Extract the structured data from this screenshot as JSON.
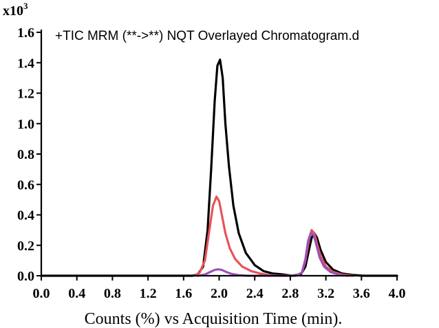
{
  "chart_data": {
    "type": "line",
    "title": "+TIC MRM (**->**) NQT Overlayed Chromatogram.d",
    "xlabel": "Counts (%) vs Acquisition Time (min).",
    "ylabel": "",
    "y_multiplier": {
      "base": "x10",
      "exponent": "3"
    },
    "xlim": [
      0.0,
      4.0
    ],
    "ylim": [
      0.0,
      1.6
    ],
    "grid": false,
    "x_ticks": [
      {
        "value": 0.0,
        "label": "0.0"
      },
      {
        "value": 0.4,
        "label": "0.4"
      },
      {
        "value": 0.8,
        "label": "0.8"
      },
      {
        "value": 1.2,
        "label": "1.2"
      },
      {
        "value": 1.6,
        "label": "1.6"
      },
      {
        "value": 2.0,
        "label": "2.0"
      },
      {
        "value": 2.4,
        "label": "2.4"
      },
      {
        "value": 2.8,
        "label": "2.8"
      },
      {
        "value": 3.2,
        "label": "3.2"
      },
      {
        "value": 3.6,
        "label": "3.6"
      },
      {
        "value": 4.0,
        "label": "4.0"
      }
    ],
    "y_ticks": [
      {
        "value": 0.0,
        "label": "0.0"
      },
      {
        "value": 0.2,
        "label": "0.2"
      },
      {
        "value": 0.4,
        "label": "0.4"
      },
      {
        "value": 0.6,
        "label": "0.6"
      },
      {
        "value": 0.8,
        "label": "0.8"
      },
      {
        "value": 1.0,
        "label": "1.0"
      },
      {
        "value": 1.2,
        "label": "1.2"
      },
      {
        "value": 1.4,
        "label": "1.4"
      },
      {
        "value": 1.6,
        "label": "1.6"
      }
    ],
    "series": [
      {
        "color": "#000000",
        "points": [
          [
            0.0,
            0.0
          ],
          [
            1.7,
            0.0
          ],
          [
            1.76,
            0.01
          ],
          [
            1.82,
            0.06
          ],
          [
            1.87,
            0.3
          ],
          [
            1.91,
            0.7
          ],
          [
            1.95,
            1.15
          ],
          [
            1.98,
            1.38
          ],
          [
            2.01,
            1.42
          ],
          [
            2.04,
            1.3
          ],
          [
            2.07,
            1.0
          ],
          [
            2.11,
            0.72
          ],
          [
            2.16,
            0.46
          ],
          [
            2.22,
            0.28
          ],
          [
            2.3,
            0.15
          ],
          [
            2.4,
            0.07
          ],
          [
            2.5,
            0.03
          ],
          [
            2.6,
            0.015
          ],
          [
            2.7,
            0.01
          ],
          [
            2.82,
            0.0
          ],
          [
            2.92,
            0.01
          ],
          [
            2.97,
            0.06
          ],
          [
            3.01,
            0.17
          ],
          [
            3.04,
            0.25
          ],
          [
            3.07,
            0.28
          ],
          [
            3.1,
            0.25
          ],
          [
            3.14,
            0.17
          ],
          [
            3.2,
            0.09
          ],
          [
            3.28,
            0.04
          ],
          [
            3.38,
            0.015
          ],
          [
            3.5,
            0.005
          ],
          [
            3.62,
            0.0
          ],
          [
            4.0,
            0.0
          ]
        ]
      },
      {
        "color": "#e8525a",
        "points": [
          [
            1.72,
            0.0
          ],
          [
            1.78,
            0.02
          ],
          [
            1.84,
            0.1
          ],
          [
            1.89,
            0.3
          ],
          [
            1.93,
            0.46
          ],
          [
            1.97,
            0.52
          ],
          [
            2.0,
            0.49
          ],
          [
            2.03,
            0.4
          ],
          [
            2.07,
            0.28
          ],
          [
            2.12,
            0.18
          ],
          [
            2.18,
            0.11
          ],
          [
            2.26,
            0.06
          ],
          [
            2.36,
            0.03
          ],
          [
            2.46,
            0.015
          ],
          [
            2.56,
            0.005
          ],
          [
            2.66,
            0.0
          ],
          [
            2.86,
            0.0
          ],
          [
            2.93,
            0.02
          ],
          [
            2.97,
            0.1
          ],
          [
            3.01,
            0.24
          ],
          [
            3.04,
            0.3
          ],
          [
            3.07,
            0.28
          ],
          [
            3.1,
            0.21
          ],
          [
            3.14,
            0.13
          ],
          [
            3.2,
            0.06
          ],
          [
            3.28,
            0.025
          ],
          [
            3.38,
            0.008
          ],
          [
            3.5,
            0.0
          ]
        ]
      },
      {
        "color": "#9a52b8",
        "points": [
          [
            1.76,
            0.0
          ],
          [
            1.84,
            0.008
          ],
          [
            1.9,
            0.025
          ],
          [
            1.95,
            0.038
          ],
          [
            1.99,
            0.042
          ],
          [
            2.03,
            0.038
          ],
          [
            2.08,
            0.025
          ],
          [
            2.14,
            0.012
          ],
          [
            2.22,
            0.004
          ],
          [
            2.32,
            0.0
          ],
          [
            2.86,
            0.0
          ],
          [
            2.93,
            0.02
          ],
          [
            2.97,
            0.11
          ],
          [
            3.0,
            0.23
          ],
          [
            3.03,
            0.28
          ],
          [
            3.06,
            0.27
          ],
          [
            3.09,
            0.21
          ],
          [
            3.13,
            0.12
          ],
          [
            3.18,
            0.06
          ],
          [
            3.25,
            0.025
          ],
          [
            3.34,
            0.008
          ],
          [
            3.45,
            0.0
          ]
        ]
      }
    ]
  }
}
